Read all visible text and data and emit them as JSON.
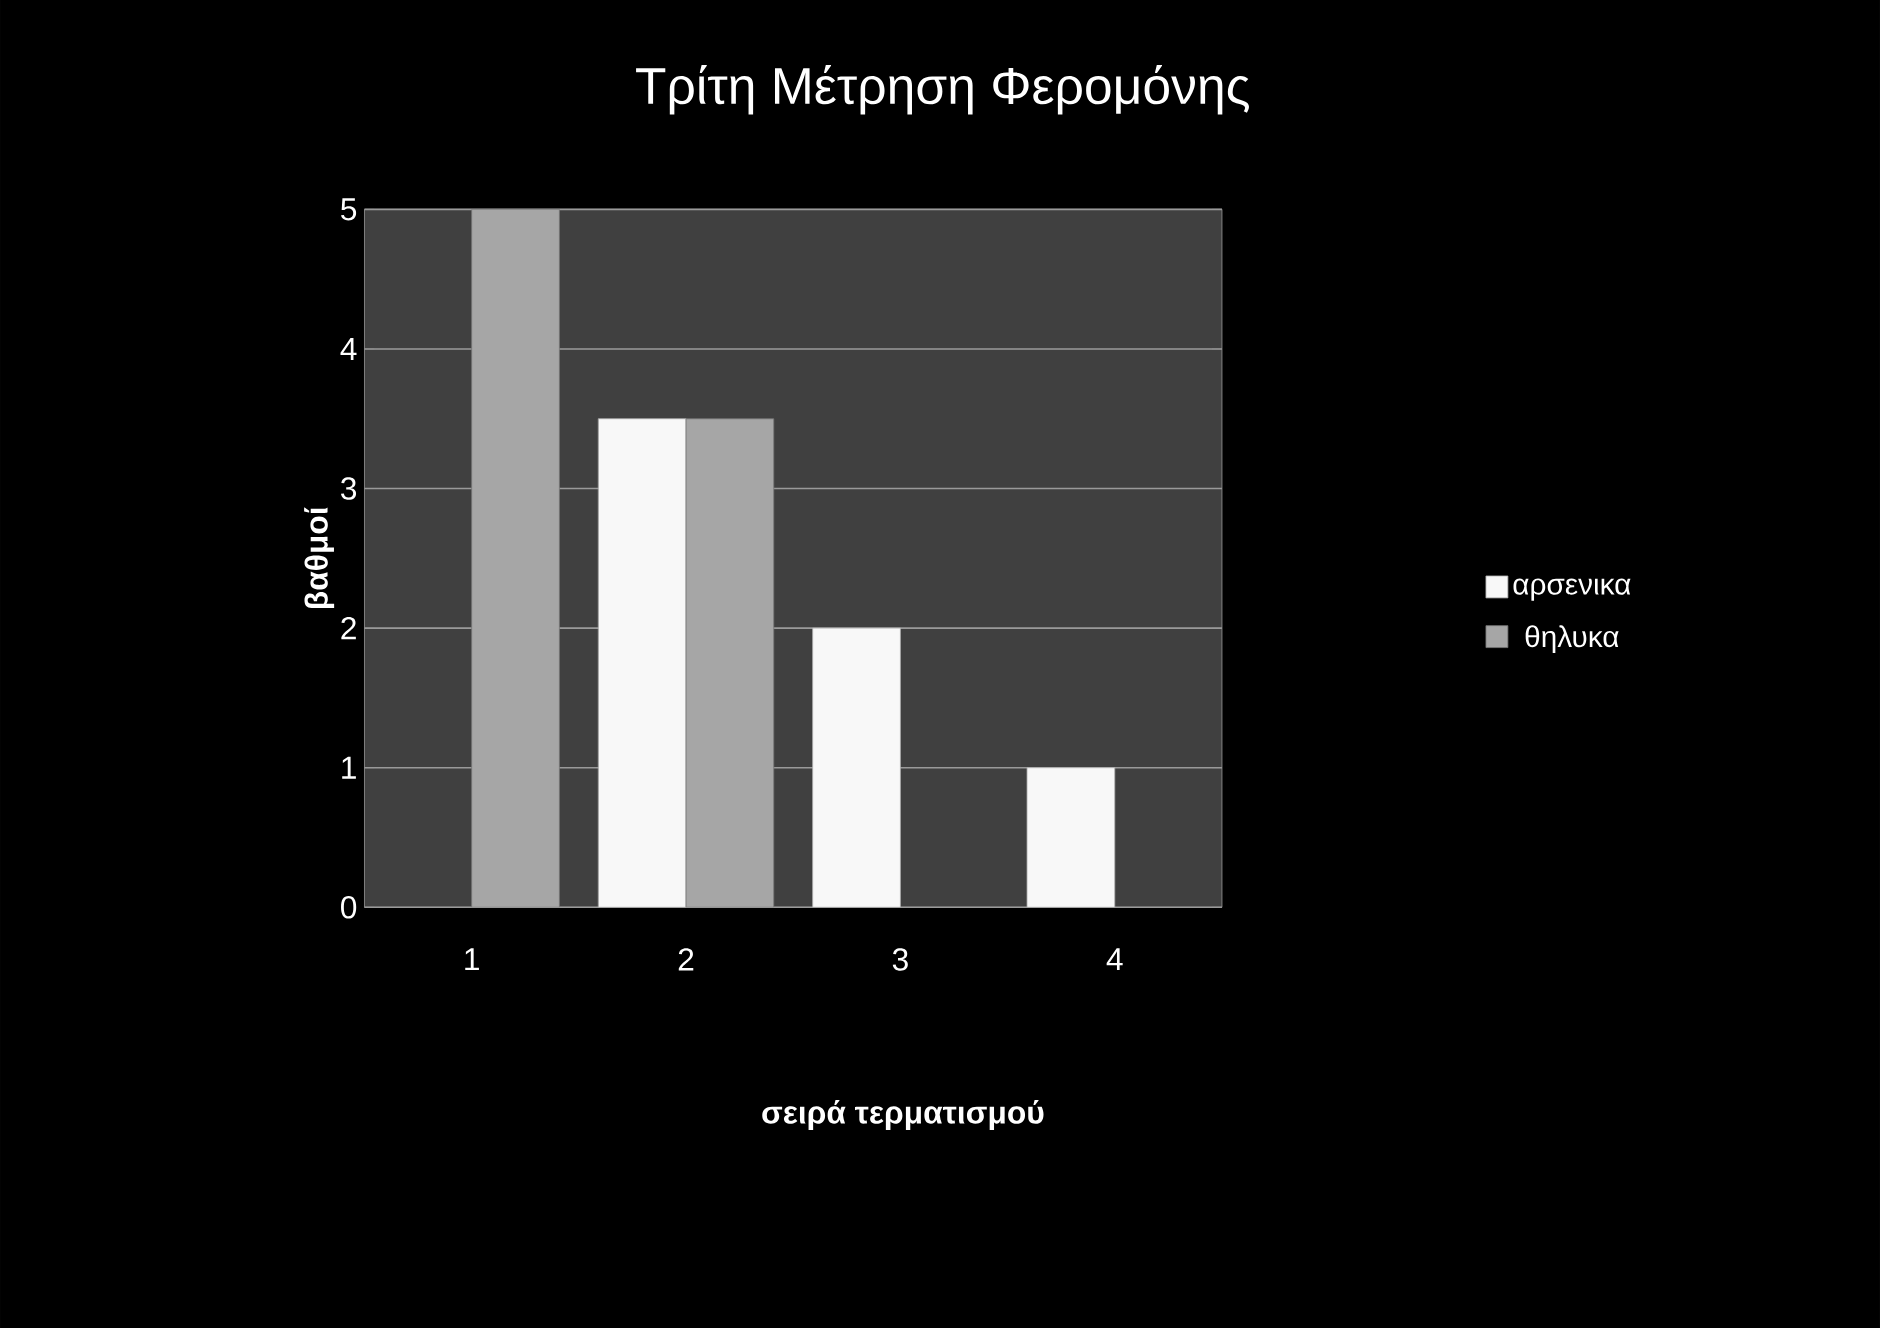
{
  "chart_data": {
    "type": "bar",
    "title": "Τρίτη Μέτρηση Φερομόνης",
    "xlabel": "σειρά τερματισμού",
    "ylabel": "βαθμοί",
    "categories": [
      "1",
      "2",
      "3",
      "4"
    ],
    "series": [
      {
        "name": "αρσενικα",
        "color": "#f8f8f8",
        "values": [
          null,
          3.5,
          2,
          1
        ]
      },
      {
        "name": "θηλυκα",
        "color": "#a6a6a6",
        "values": [
          5,
          3.5,
          null,
          null
        ]
      }
    ],
    "ylim": [
      0,
      5
    ],
    "yticks": [
      0,
      1,
      2,
      3,
      4,
      5
    ],
    "grid": "y",
    "legend": "right"
  }
}
